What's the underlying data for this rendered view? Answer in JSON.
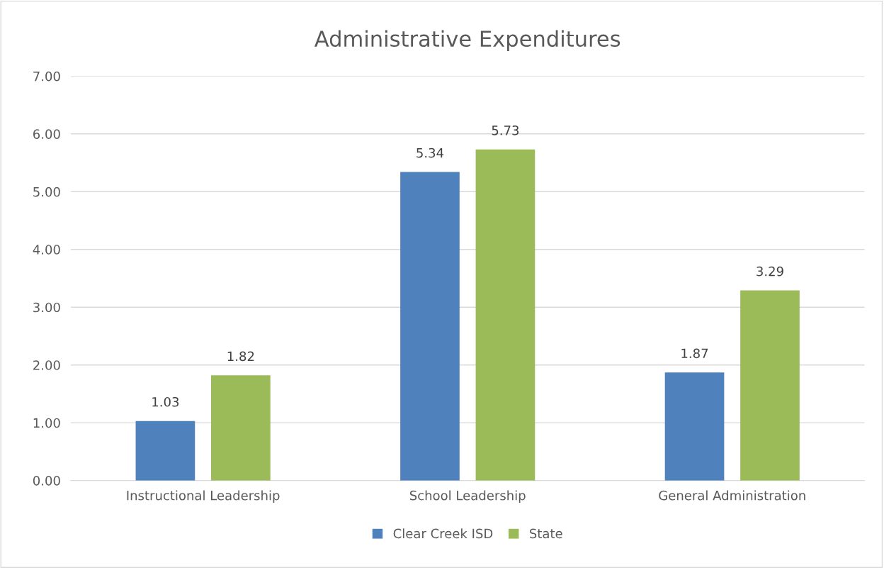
{
  "chart_data": {
    "type": "bar",
    "title": "Administrative Expenditures",
    "categories": [
      "Instructional Leadership",
      "School Leadership",
      "General Administration"
    ],
    "series": [
      {
        "name": "Clear Creek ISD",
        "color": "#4f81bd",
        "values": [
          1.03,
          5.34,
          1.87
        ]
      },
      {
        "name": "State",
        "color": "#9bbb59",
        "values": [
          1.82,
          5.73,
          3.29
        ]
      }
    ],
    "ylim": [
      0,
      7
    ],
    "yticks": [
      {
        "value": 0,
        "label": "0.00"
      },
      {
        "value": 1,
        "label": "1.00"
      },
      {
        "value": 2,
        "label": "2.00"
      },
      {
        "value": 3,
        "label": "3.00"
      },
      {
        "value": 4,
        "label": "4.00"
      },
      {
        "value": 5,
        "label": "5.00"
      },
      {
        "value": 6,
        "label": "6.00"
      },
      {
        "value": 7,
        "label": "7.00"
      }
    ],
    "grid": "y",
    "legend": "bottom",
    "data_labels": true
  }
}
